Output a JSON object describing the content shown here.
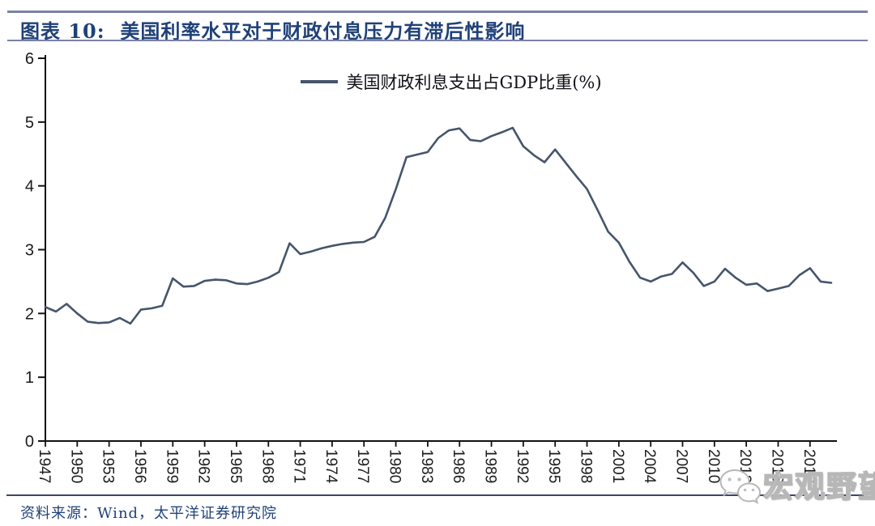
{
  "header": {
    "title": "图表 10:  美国利率水平对于财政付息压力有滞后性影响"
  },
  "footer": {
    "source": "资料来源：Wind，太平洋证券研究院"
  },
  "watermark": {
    "label": "宏观野望",
    "icon": "wechat-logo-icon"
  },
  "colors": {
    "line": "#45556B",
    "accent_rule": "#7b81a6",
    "title_text": "#1f4178",
    "axis": "#1a1a1a",
    "watermark_gray": "#b7b7b7"
  },
  "chart_data": {
    "type": "line",
    "title": "",
    "legend": [
      "美国财政利息支出占GDP比重(%)"
    ],
    "legend_position": "top-center",
    "grid": false,
    "ylim": [
      0,
      6
    ],
    "y_ticks": [
      0,
      1,
      2,
      3,
      4,
      5,
      6
    ],
    "x_tick_step": 3,
    "x_tick_labels": [
      "1947",
      "1950",
      "1953",
      "1956",
      "1959",
      "1962",
      "1965",
      "1968",
      "1971",
      "1974",
      "1977",
      "1980",
      "1983",
      "1986",
      "1989",
      "1992",
      "1995",
      "1998",
      "2001",
      "2004",
      "2007",
      "2010",
      "2013",
      "2016",
      "2019"
    ],
    "x": [
      1947,
      1948,
      1949,
      1950,
      1951,
      1952,
      1953,
      1954,
      1955,
      1956,
      1957,
      1958,
      1959,
      1960,
      1961,
      1962,
      1963,
      1964,
      1965,
      1966,
      1967,
      1968,
      1969,
      1970,
      1971,
      1972,
      1973,
      1974,
      1975,
      1976,
      1977,
      1978,
      1979,
      1980,
      1981,
      1982,
      1983,
      1984,
      1985,
      1986,
      1987,
      1988,
      1989,
      1990,
      1991,
      1992,
      1993,
      1994,
      1995,
      1996,
      1997,
      1998,
      1999,
      2000,
      2001,
      2002,
      2003,
      2004,
      2005,
      2006,
      2007,
      2008,
      2009,
      2010,
      2011,
      2012,
      2013,
      2014,
      2015,
      2016,
      2017,
      2018,
      2019,
      2020,
      2021
    ],
    "series": [
      {
        "name": "美国财政利息支出占GDP比重(%)",
        "color": "#45556B",
        "values": [
          2.1,
          2.03,
          2.15,
          2.0,
          1.87,
          1.85,
          1.86,
          1.93,
          1.84,
          2.06,
          2.08,
          2.12,
          2.55,
          2.42,
          2.43,
          2.51,
          2.53,
          2.52,
          2.47,
          2.46,
          2.5,
          2.56,
          2.65,
          3.1,
          2.93,
          2.97,
          3.02,
          3.06,
          3.09,
          3.11,
          3.12,
          3.2,
          3.5,
          3.95,
          4.45,
          4.49,
          4.53,
          4.75,
          4.87,
          4.9,
          4.72,
          4.7,
          4.78,
          4.84,
          4.91,
          4.62,
          4.48,
          4.37,
          4.57,
          4.36,
          4.15,
          3.95,
          3.62,
          3.28,
          3.11,
          2.81,
          2.56,
          2.5,
          2.58,
          2.62,
          2.8,
          2.64,
          2.43,
          2.5,
          2.7,
          2.56,
          2.45,
          2.47,
          2.35,
          2.39,
          2.43,
          2.6,
          2.71,
          2.5,
          2.48
        ]
      }
    ]
  }
}
